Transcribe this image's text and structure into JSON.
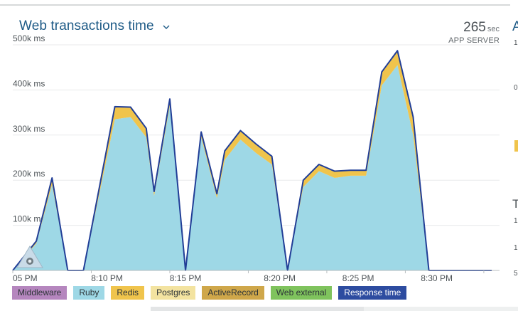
{
  "header": {
    "title": "Web transactions time",
    "app_server_value": "265",
    "app_server_unit": "sec",
    "app_server_label": "APP SERVER"
  },
  "chart_data": {
    "type": "area",
    "title": "Web transactions time",
    "xlabel": "",
    "ylabel": "",
    "ylim": [
      0,
      500000
    ],
    "y_ticks": [
      100000,
      200000,
      300000,
      400000,
      500000
    ],
    "y_tick_labels": [
      "100k ms",
      "200k ms",
      "300k ms",
      "400k ms",
      "500k ms"
    ],
    "x_domain": [
      0,
      31
    ],
    "x_ticks": [
      0,
      5,
      10,
      15,
      20,
      25,
      30
    ],
    "x_tick_labels": [
      "05 PM",
      "8:10 PM",
      "8:15 PM",
      "8:20 PM",
      "8:25 PM",
      "8:30 PM"
    ],
    "x_tick_label_positions": [
      0,
      6,
      11,
      17,
      22,
      27
    ],
    "grid": true,
    "stacked": true,
    "x": [
      0,
      1.5,
      2.5,
      3.5,
      4.5,
      6.5,
      7.5,
      8.5,
      9.0,
      10.0,
      11.0,
      12.0,
      13.0,
      13.5,
      14.5,
      15.5,
      16.5,
      17.5,
      18.5,
      19.5,
      20.5,
      21.5,
      22.5,
      23.5,
      24.5,
      25.5,
      26.5,
      27.0,
      28.0,
      28.5,
      29.5,
      30.5
    ],
    "series": [
      {
        "name": "Middleware",
        "color": "#b06cb4",
        "values": [
          0,
          0,
          0,
          0,
          0,
          0,
          0,
          0,
          0,
          0,
          0,
          0,
          0,
          0,
          0,
          0,
          0,
          0,
          0,
          0,
          0,
          0,
          0,
          0,
          0,
          0,
          0,
          0,
          0,
          0,
          0,
          0
        ]
      },
      {
        "name": "Ruby",
        "color": "#9ed8e6",
        "values": [
          0,
          60000,
          190000,
          0,
          0,
          335000,
          340000,
          295000,
          165000,
          365000,
          0,
          295000,
          160000,
          245000,
          290000,
          260000,
          235000,
          0,
          185000,
          220000,
          205000,
          210000,
          210000,
          410000,
          455000,
          300000,
          0,
          0,
          0,
          0,
          0,
          0
        ]
      },
      {
        "name": "Redis",
        "color": "#f0c44c",
        "values": [
          0,
          5000,
          15000,
          0,
          0,
          28000,
          22000,
          20000,
          10000,
          15000,
          0,
          12000,
          10000,
          20000,
          20000,
          20000,
          18000,
          0,
          15000,
          15000,
          15000,
          12000,
          12000,
          30000,
          30000,
          40000,
          0,
          0,
          0,
          0,
          0,
          0
        ]
      },
      {
        "name": "Postgres",
        "color": "#f5e6a3",
        "values": [
          0,
          0,
          0,
          0,
          0,
          0,
          0,
          0,
          0,
          0,
          0,
          0,
          0,
          0,
          0,
          0,
          0,
          0,
          0,
          0,
          0,
          0,
          0,
          0,
          0,
          0,
          0,
          0,
          0,
          0,
          0,
          0
        ]
      },
      {
        "name": "ActiveRecord",
        "color": "#cfa74a",
        "values": [
          0,
          0,
          0,
          0,
          0,
          0,
          0,
          0,
          0,
          0,
          0,
          0,
          0,
          0,
          0,
          0,
          0,
          0,
          0,
          0,
          0,
          0,
          0,
          0,
          0,
          0,
          0,
          0,
          0,
          0,
          0,
          0
        ]
      },
      {
        "name": "Web external",
        "color": "#7fc35d",
        "values": [
          0,
          0,
          0,
          0,
          0,
          0,
          0,
          0,
          0,
          0,
          0,
          0,
          0,
          0,
          0,
          0,
          0,
          0,
          0,
          0,
          0,
          0,
          0,
          0,
          0,
          0,
          0,
          0,
          0,
          0,
          0,
          0
        ]
      }
    ],
    "response_time": {
      "name": "Response time",
      "color": "#213e97",
      "x": [
        0,
        1.5,
        2.5,
        3.5,
        4.5,
        6.5,
        7.5,
        8.5,
        9.0,
        10.0,
        11.0,
        12.0,
        13.0,
        13.5,
        14.5,
        15.5,
        16.5,
        17.5,
        18.5,
        19.5,
        20.5,
        21.5,
        22.5,
        23.5,
        24.5,
        25.5,
        26.5,
        27.0,
        28.0,
        28.5,
        29.5,
        30.5
      ],
      "values": [
        0,
        65000,
        205000,
        0,
        0,
        363000,
        362000,
        315000,
        175000,
        380000,
        0,
        307000,
        170000,
        265000,
        310000,
        280000,
        253000,
        0,
        200000,
        235000,
        220000,
        222000,
        222000,
        440000,
        487000,
        340000,
        0,
        0,
        0,
        0,
        0,
        0
      ]
    },
    "legend": [
      "Middleware",
      "Ruby",
      "Redis",
      "Postgres",
      "ActiveRecord",
      "Web external",
      "Response time"
    ],
    "legend_placement": "bottom"
  },
  "legend": [
    {
      "label": "Middleware",
      "color": "#b586be",
      "text_color": "#2c3337"
    },
    {
      "label": "Ruby",
      "color": "#9ed8e6",
      "text_color": "#2c3337"
    },
    {
      "label": "Redis",
      "color": "#f0c44c",
      "text_color": "#2c3337"
    },
    {
      "label": "Postgres",
      "color": "#f3e3a0",
      "text_color": "#2c3337"
    },
    {
      "label": "ActiveRecord",
      "color": "#cfa74a",
      "text_color": "#2c3337"
    },
    {
      "label": "Web external",
      "color": "#7fc35d",
      "text_color": "#2c3337"
    },
    {
      "label": "Response time",
      "color": "#2d4ca0",
      "text_color": "#ffffff"
    }
  ],
  "edge_fragments": [
    "A",
    "1",
    "0",
    "T",
    "1",
    "1",
    "5"
  ],
  "colors": {
    "title": "#1d5a86",
    "gridline": "#e8eaeb",
    "axis": "#b9bdbf"
  }
}
